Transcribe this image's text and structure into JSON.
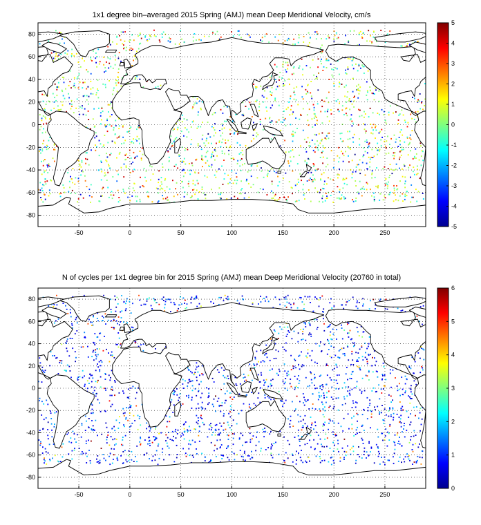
{
  "panels": [
    {
      "id": "velocity",
      "title": "1x1 degree bin–averaged 2015 Spring (AMJ) mean Deep Meridional Velocity, cm/s",
      "x_ticks": [
        "-50",
        "0",
        "50",
        "100",
        "150",
        "200",
        "250"
      ],
      "y_ticks": [
        "80",
        "60",
        "40",
        "20",
        "0",
        "-20",
        "-40",
        "-60",
        "-80"
      ],
      "colorbar_ticks": [
        "5",
        "4",
        "3",
        "2",
        "1",
        "0",
        "-1",
        "-2",
        "-3",
        "-4",
        "-5"
      ],
      "colorbar_range": [
        -5,
        5
      ],
      "colormap": "jet"
    },
    {
      "id": "cycles",
      "title": "N of cycles per 1x1 degree bin for 2015 Spring (AMJ) mean Deep Meridional Velocity (20760 in total)",
      "x_ticks": [
        "-50",
        "0",
        "50",
        "100",
        "150",
        "200",
        "250"
      ],
      "y_ticks": [
        "80",
        "60",
        "40",
        "20",
        "0",
        "-20",
        "-40",
        "-60",
        "-80"
      ],
      "colorbar_ticks": [
        "6",
        "5",
        "4",
        "3",
        "2",
        "1",
        "0"
      ],
      "colorbar_range": [
        0,
        6
      ],
      "colormap": "jet"
    }
  ],
  "map": {
    "lon_range": [
      -90,
      290
    ],
    "lat_range": [
      -90,
      90
    ],
    "grid": "dotted",
    "land_color": "#ffffff",
    "coast_color": "#000000"
  }
}
